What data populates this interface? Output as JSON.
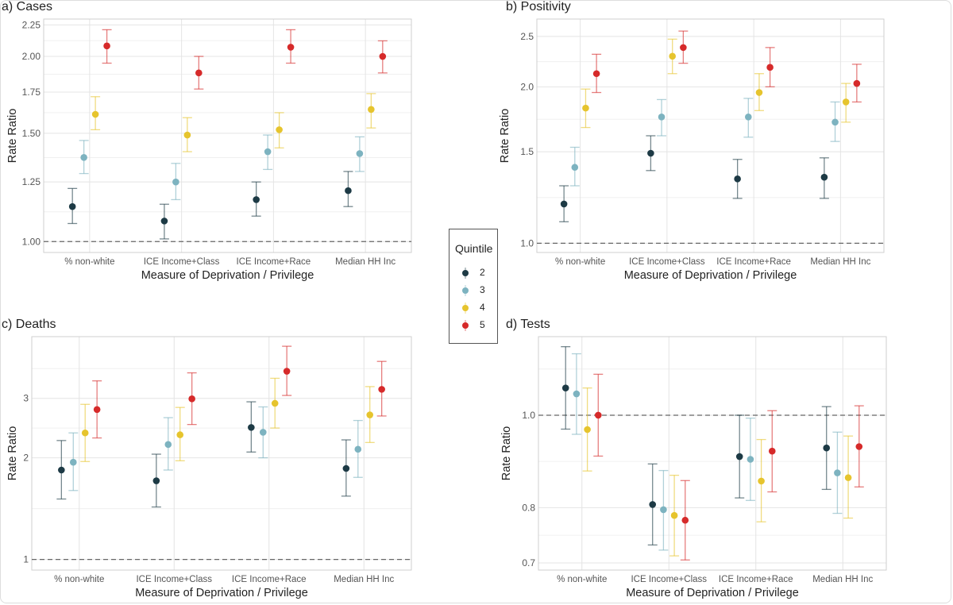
{
  "chart_data": [
    {
      "type": "scatter",
      "title": "a) Cases",
      "xlabel": "Measure of Deprivation / Privilege",
      "ylabel": "Rate Ratio",
      "yscale": "log",
      "ylim": [
        0.96,
        2.3
      ],
      "yticks": [
        1.0,
        1.25,
        1.5,
        1.75,
        2.0,
        2.25
      ],
      "ytick_labels": [
        "1.00",
        "1.25",
        "1.50",
        "1.75",
        "2.00",
        "2.25"
      ],
      "reference_line": 1.0,
      "grid": true,
      "categories": [
        "% non-white",
        "ICE Income+Class",
        "ICE Income+Race",
        "Median HH Inc"
      ],
      "series": [
        {
          "name": "2",
          "values": [
            1.14,
            1.08,
            1.17,
            1.21
          ],
          "lower": [
            1.07,
            1.01,
            1.1,
            1.14
          ],
          "upper": [
            1.22,
            1.15,
            1.25,
            1.3
          ]
        },
        {
          "name": "3",
          "values": [
            1.37,
            1.25,
            1.4,
            1.39
          ],
          "lower": [
            1.29,
            1.17,
            1.31,
            1.3
          ],
          "upper": [
            1.46,
            1.34,
            1.49,
            1.48
          ]
        },
        {
          "name": "4",
          "values": [
            1.61,
            1.49,
            1.52,
            1.64
          ],
          "lower": [
            1.52,
            1.4,
            1.42,
            1.53
          ],
          "upper": [
            1.72,
            1.59,
            1.62,
            1.74
          ]
        },
        {
          "name": "5",
          "values": [
            2.08,
            1.88,
            2.07,
            2.0
          ],
          "lower": [
            1.95,
            1.77,
            1.95,
            1.88
          ],
          "upper": [
            2.21,
            2.0,
            2.21,
            2.12
          ]
        }
      ]
    },
    {
      "type": "scatter",
      "title": "b) Positivity",
      "xlabel": "Measure of Deprivation / Privilege",
      "ylabel": "Rate Ratio",
      "yscale": "log",
      "ylim": [
        0.96,
        2.7
      ],
      "yticks": [
        1.0,
        1.5,
        2.0,
        2.5
      ],
      "ytick_labels": [
        "1.0",
        "1.5",
        "2.0",
        "2.5"
      ],
      "reference_line": 1.0,
      "grid": true,
      "categories": [
        "% non-white",
        "ICE Income+Class",
        "ICE Income+Race",
        "Median HH Inc"
      ],
      "series": [
        {
          "name": "2",
          "values": [
            1.19,
            1.49,
            1.33,
            1.34
          ],
          "lower": [
            1.1,
            1.38,
            1.22,
            1.22
          ],
          "upper": [
            1.29,
            1.61,
            1.45,
            1.46
          ]
        },
        {
          "name": "3",
          "values": [
            1.4,
            1.75,
            1.75,
            1.71
          ],
          "lower": [
            1.29,
            1.61,
            1.6,
            1.57
          ],
          "upper": [
            1.53,
            1.89,
            1.9,
            1.87
          ]
        },
        {
          "name": "4",
          "values": [
            1.82,
            2.29,
            1.95,
            1.87
          ],
          "lower": [
            1.67,
            2.12,
            1.8,
            1.71
          ],
          "upper": [
            1.98,
            2.47,
            2.12,
            2.03
          ]
        },
        {
          "name": "5",
          "values": [
            2.12,
            2.38,
            2.18,
            2.03
          ],
          "lower": [
            1.95,
            2.22,
            2.0,
            1.87
          ],
          "upper": [
            2.31,
            2.56,
            2.38,
            2.21
          ]
        }
      ]
    },
    {
      "type": "scatter",
      "title": "c) Deaths",
      "xlabel": "Measure of Deprivation / Privilege",
      "ylabel": "Rate Ratio",
      "yscale": "log",
      "ylim": [
        0.93,
        4.57
      ],
      "yticks": [
        1,
        2,
        3
      ],
      "ytick_labels": [
        "1",
        "2",
        "3"
      ],
      "reference_line": 1.0,
      "grid": true,
      "categories": [
        "% non-white",
        "ICE Income+Class",
        "ICE Income+Race",
        "Median HH Inc"
      ],
      "series": [
        {
          "name": "2",
          "values": [
            1.84,
            1.71,
            2.46,
            1.86
          ],
          "lower": [
            1.51,
            1.43,
            2.08,
            1.54
          ],
          "upper": [
            2.25,
            2.05,
            2.93,
            2.26
          ]
        },
        {
          "name": "3",
          "values": [
            1.94,
            2.19,
            2.38,
            2.12
          ],
          "lower": [
            1.6,
            1.84,
            2.0,
            1.75
          ],
          "upper": [
            2.37,
            2.63,
            2.83,
            2.58
          ]
        },
        {
          "name": "4",
          "values": [
            2.37,
            2.34,
            2.9,
            2.68
          ],
          "lower": [
            1.95,
            1.96,
            2.45,
            2.22
          ],
          "upper": [
            2.88,
            2.82,
            3.44,
            3.25
          ]
        },
        {
          "name": "5",
          "values": [
            2.78,
            2.99,
            3.61,
            3.19
          ],
          "lower": [
            2.29,
            2.51,
            3.06,
            2.66
          ],
          "upper": [
            3.38,
            3.57,
            4.28,
            3.86
          ]
        }
      ]
    },
    {
      "type": "scatter",
      "title": "d) Tests",
      "xlabel": "Measure of Deprivation / Privilege",
      "ylabel": "Rate Ratio",
      "yscale": "log",
      "ylim": [
        0.688,
        1.209
      ],
      "yticks": [
        0.7,
        0.8,
        1.0
      ],
      "ytick_labels": [
        "0.7",
        "0.8",
        "1.0"
      ],
      "reference_line": 1.0,
      "grid": true,
      "categories": [
        "% non-white",
        "ICE Income+Class",
        "ICE Income+Race",
        "Median HH Inc"
      ],
      "series": [
        {
          "name": "2",
          "values": [
            1.068,
            0.806,
            0.905,
            0.924
          ],
          "lower": [
            0.967,
            0.731,
            0.819,
            0.836
          ],
          "upper": [
            1.18,
            0.889,
            1.0,
            1.021
          ]
        },
        {
          "name": "3",
          "values": [
            1.053,
            0.796,
            0.899,
            0.87
          ],
          "lower": [
            0.955,
            0.722,
            0.814,
            0.789
          ],
          "upper": [
            1.16,
            0.875,
            0.993,
            0.96
          ]
        },
        {
          "name": "4",
          "values": [
            0.966,
            0.785,
            0.853,
            0.86
          ],
          "lower": [
            0.874,
            0.712,
            0.773,
            0.78
          ],
          "upper": [
            1.068,
            0.865,
            0.943,
            0.951
          ]
        },
        {
          "name": "5",
          "values": [
            1.0,
            0.776,
            0.917,
            0.927
          ],
          "lower": [
            0.906,
            0.705,
            0.831,
            0.841
          ],
          "upper": [
            1.104,
            0.854,
            1.011,
            1.023
          ]
        }
      ]
    }
  ],
  "legend": {
    "title": "Quintile",
    "placement": "center",
    "items": [
      {
        "label": "2",
        "color": "#1d3a45"
      },
      {
        "label": "3",
        "color": "#7db3c0"
      },
      {
        "label": "4",
        "color": "#e6c42d"
      },
      {
        "label": "5",
        "color": "#d62a2a"
      }
    ]
  }
}
